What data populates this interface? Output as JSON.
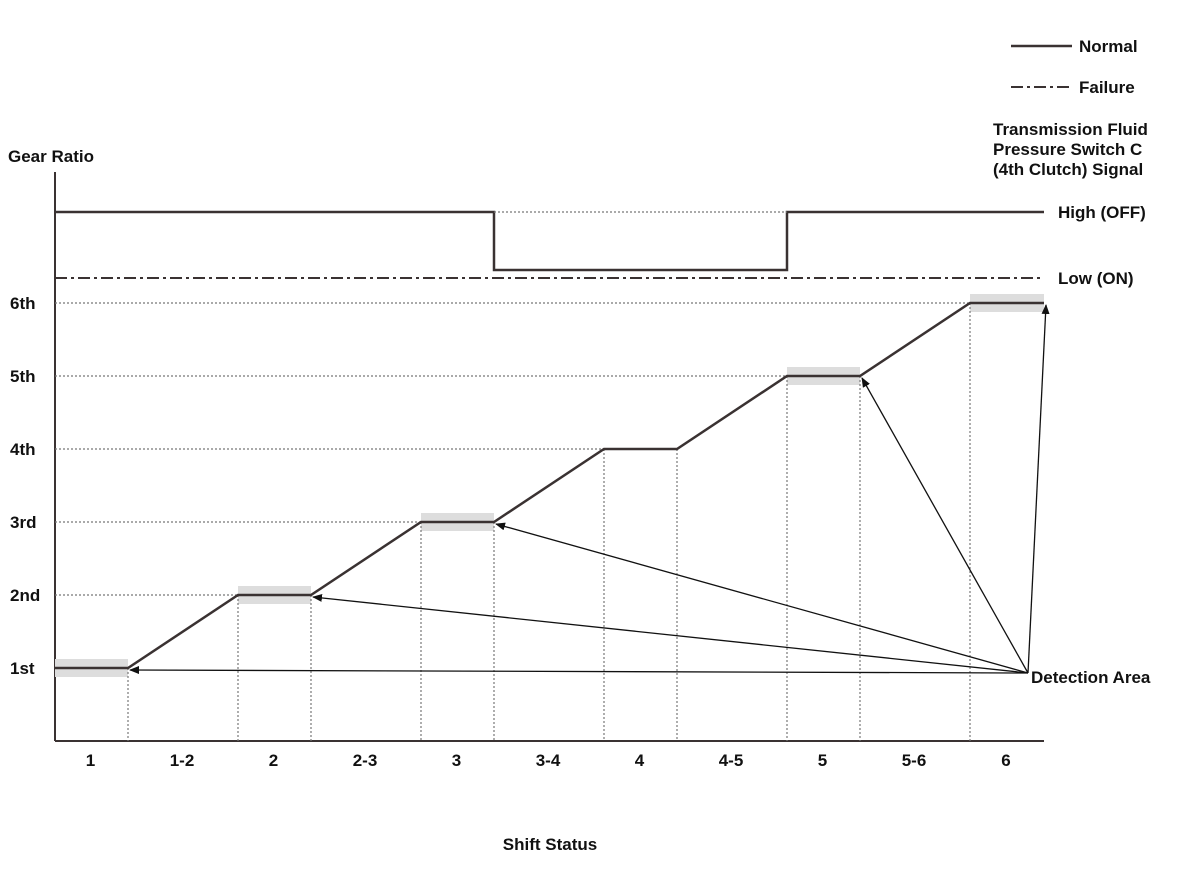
{
  "chart_data": {
    "type": "line",
    "title": "",
    "ylabel": "Gear Ratio",
    "xlabel": "Shift Status",
    "categories": [
      "1",
      "1-2",
      "2",
      "2-3",
      "3",
      "3-4",
      "4",
      "4-5",
      "5",
      "5-6",
      "6"
    ],
    "y_ticks": [
      "1st",
      "2nd",
      "3rd",
      "4th",
      "5th",
      "6th"
    ],
    "legend": [
      {
        "label": "Normal",
        "style": "solid"
      },
      {
        "label": "Failure",
        "style": "dash-dot"
      }
    ],
    "legend_position": "top-right",
    "gear_ratio_series": {
      "x": [
        "1",
        "1-2",
        "2",
        "2-3",
        "3",
        "3-4",
        "4",
        "4-5",
        "5",
        "5-6",
        "6"
      ],
      "values": [
        1,
        1.5,
        2,
        2.5,
        3,
        3.5,
        4,
        4.5,
        5,
        5.5,
        6
      ]
    },
    "signal": {
      "title_lines": [
        "Transmission Fluid",
        "Pressure Switch C",
        "(4th Clutch) Signal"
      ],
      "levels": [
        "High (OFF)",
        "Low (ON)"
      ],
      "normal": [
        "High (OFF)",
        "High (OFF)",
        "High (OFF)",
        "High (OFF)",
        "High (OFF)",
        "Low (ON)",
        "Low (ON)",
        "Low (ON)",
        "High (OFF)",
        "High (OFF)",
        "High (OFF)"
      ],
      "failure": [
        "Low (ON)",
        "Low (ON)",
        "Low (ON)",
        "Low (ON)",
        "Low (ON)",
        "Low (ON)",
        "Low (ON)",
        "Low (ON)",
        "Low (ON)",
        "Low (ON)",
        "Low (ON)"
      ]
    },
    "annotation": {
      "label": "Detection Area",
      "points_to": [
        "1st",
        "2nd",
        "3rd",
        "5th",
        "6th"
      ]
    },
    "grid": false
  },
  "colors": {
    "line": "#3a3232",
    "dotted": "#777777",
    "highlight": "#dddddd"
  }
}
